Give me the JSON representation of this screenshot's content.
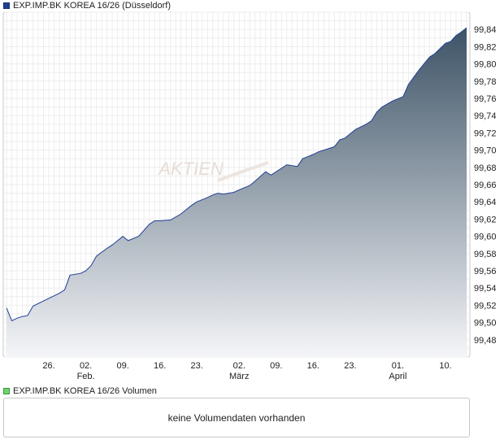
{
  "legend": {
    "price_label": "EXP.IMP.BK KOREA 16/26 (Düsseldorf)",
    "volume_label": "EXP.IMP.BK KOREA 16/26 Volumen",
    "price_color": "#1f3f95",
    "volume_color": "#6fd36f"
  },
  "volume_panel": {
    "message": "keine Volumendaten vorhanden"
  },
  "watermark": "AKTIEN",
  "chart_data": {
    "type": "area",
    "title": "",
    "xlabel": "",
    "ylabel": "",
    "ylim": [
      99.46,
      99.86
    ],
    "yticks": [
      99.48,
      99.5,
      99.52,
      99.54,
      99.56,
      99.58,
      99.6,
      99.62,
      99.64,
      99.66,
      99.68,
      99.7,
      99.72,
      99.74,
      99.76,
      99.78,
      99.8,
      99.82,
      99.84
    ],
    "ytick_labels": [
      "99,48",
      "99,50",
      "99,52",
      "99,54",
      "99,56",
      "99,58",
      "99,60",
      "99,62",
      "99,64",
      "99,66",
      "99,68",
      "99,70",
      "99,72",
      "99,74",
      "99,76",
      "99,78",
      "99,80",
      "99,82",
      "99,84"
    ],
    "xlim": [
      "2016-01-18",
      "2016-04-14"
    ],
    "xticks": [
      {
        "date": "2016-01-26",
        "label": "26.",
        "sublabel": ""
      },
      {
        "date": "2016-02-02",
        "label": "02.",
        "sublabel": "Feb."
      },
      {
        "date": "2016-02-09",
        "label": "09.",
        "sublabel": ""
      },
      {
        "date": "2016-02-16",
        "label": "16.",
        "sublabel": ""
      },
      {
        "date": "2016-02-23",
        "label": "23.",
        "sublabel": ""
      },
      {
        "date": "2016-03-02",
        "label": "02.",
        "sublabel": "März"
      },
      {
        "date": "2016-03-09",
        "label": "09.",
        "sublabel": ""
      },
      {
        "date": "2016-03-16",
        "label": "16.",
        "sublabel": ""
      },
      {
        "date": "2016-03-23",
        "label": "23.",
        "sublabel": ""
      },
      {
        "date": "2016-04-01",
        "label": "01.",
        "sublabel": "April"
      },
      {
        "date": "2016-04-10",
        "label": "10.",
        "sublabel": ""
      }
    ],
    "grid": true,
    "series": [
      {
        "color": "#1f3f95",
        "fill_top": "#3d5366",
        "fill_bottom": "#f4f5f8",
        "points": [
          [
            "2016-01-18",
            99.517
          ],
          [
            "2016-01-19",
            99.502
          ],
          [
            "2016-01-20",
            99.505
          ],
          [
            "2016-01-21",
            99.507
          ],
          [
            "2016-01-22",
            99.508
          ],
          [
            "2016-01-23",
            99.519
          ],
          [
            "2016-01-25",
            99.525
          ],
          [
            "2016-01-26",
            99.528
          ],
          [
            "2016-01-28",
            99.534
          ],
          [
            "2016-01-29",
            99.538
          ],
          [
            "2016-01-30",
            99.555
          ],
          [
            "2016-02-01",
            99.557
          ],
          [
            "2016-02-02",
            99.56
          ],
          [
            "2016-02-03",
            99.566
          ],
          [
            "2016-02-04",
            99.577
          ],
          [
            "2016-02-06",
            99.586
          ],
          [
            "2016-02-07",
            99.59
          ],
          [
            "2016-02-09",
            99.6
          ],
          [
            "2016-02-10",
            99.595
          ],
          [
            "2016-02-12",
            99.6
          ],
          [
            "2016-02-14",
            99.614
          ],
          [
            "2016-02-15",
            99.618
          ],
          [
            "2016-02-16",
            99.618
          ],
          [
            "2016-02-18",
            99.619
          ],
          [
            "2016-02-20",
            99.626
          ],
          [
            "2016-02-22",
            99.636
          ],
          [
            "2016-02-23",
            99.64
          ],
          [
            "2016-02-25",
            99.645
          ],
          [
            "2016-02-26",
            99.648
          ],
          [
            "2016-02-27",
            99.65
          ],
          [
            "2016-02-28",
            99.649
          ],
          [
            "2016-03-01",
            99.651
          ],
          [
            "2016-03-02",
            99.654
          ],
          [
            "2016-03-04",
            99.659
          ],
          [
            "2016-03-05",
            99.664
          ],
          [
            "2016-03-07",
            99.675
          ],
          [
            "2016-03-08",
            99.671
          ],
          [
            "2016-03-10",
            99.679
          ],
          [
            "2016-03-11",
            99.683
          ],
          [
            "2016-03-13",
            99.681
          ],
          [
            "2016-03-14",
            99.69
          ],
          [
            "2016-03-16",
            99.695
          ],
          [
            "2016-03-17",
            99.698
          ],
          [
            "2016-03-19",
            99.702
          ],
          [
            "2016-03-20",
            99.704
          ],
          [
            "2016-03-21",
            99.712
          ],
          [
            "2016-03-22",
            99.714
          ],
          [
            "2016-03-24",
            99.724
          ],
          [
            "2016-03-26",
            99.73
          ],
          [
            "2016-03-27",
            99.734
          ],
          [
            "2016-03-28",
            99.744
          ],
          [
            "2016-03-29",
            99.75
          ],
          [
            "2016-03-31",
            99.757
          ],
          [
            "2016-04-02",
            99.762
          ],
          [
            "2016-04-03",
            99.776
          ],
          [
            "2016-04-05",
            99.793
          ],
          [
            "2016-04-07",
            99.808
          ],
          [
            "2016-04-08",
            99.812
          ],
          [
            "2016-04-10",
            99.824
          ],
          [
            "2016-04-11",
            99.826
          ],
          [
            "2016-04-12",
            99.833
          ],
          [
            "2016-04-13",
            99.837
          ],
          [
            "2016-04-14",
            99.842
          ]
        ]
      }
    ]
  }
}
